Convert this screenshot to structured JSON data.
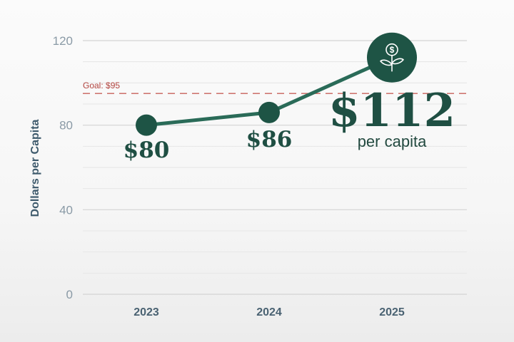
{
  "chart_data": {
    "type": "line",
    "categories": [
      "2023",
      "2024",
      "2025"
    ],
    "series": [
      {
        "values": [
          80,
          86,
          112
        ]
      }
    ],
    "ylabel": "Dollars per Capita",
    "xlabel": "",
    "ylim": [
      0,
      120
    ],
    "yticks": [
      "0",
      "40",
      "80",
      "120"
    ],
    "grid": true,
    "value_labels": [
      "$80",
      "$86",
      "$112"
    ],
    "highlight_sublabel": "per capita",
    "goal": {
      "value": 95,
      "label": "Goal: $95"
    },
    "icon": "money-plant-icon",
    "colors": {
      "line": "#2a6b58",
      "marker": "#1e5445",
      "goal": "#c8605a",
      "label": "#1f4f43"
    }
  }
}
